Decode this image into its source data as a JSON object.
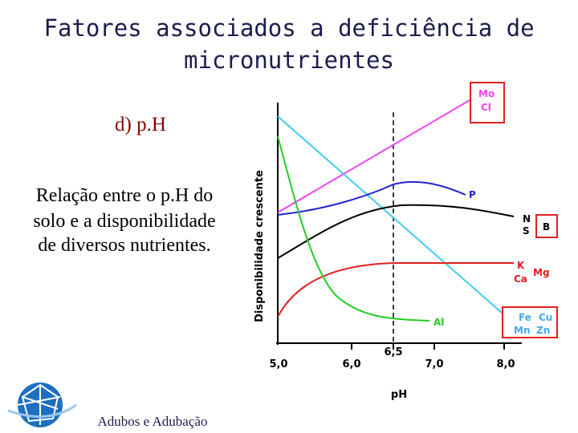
{
  "header": {
    "title_lines": [
      "Fatores associados a deficiência de",
      "micronutrientes"
    ]
  },
  "subtitle": "d) p.H",
  "description_lines": [
    "Relação entre o p.H do",
    "solo e a disponibilidade",
    "de diversos nutrientes."
  ],
  "diagram": {
    "y_axis_label": "Disponibilidade crescente",
    "x_axis_label": "pH",
    "x_tick_labels": [
      "5,0",
      "6,0",
      "6,5",
      "7,0",
      "8,0"
    ],
    "curve_labels": {
      "mo": "Mo",
      "cl": "Cl",
      "p": "P",
      "n": "N",
      "s": "S",
      "b": "B",
      "k": "K",
      "ca": "Ca",
      "mg": "Mg",
      "al": "Al",
      "fe": "Fe",
      "cu": "Cu",
      "mn": "Mn",
      "zn": "Zn"
    }
  },
  "footer": "Adubos e Adubação"
}
